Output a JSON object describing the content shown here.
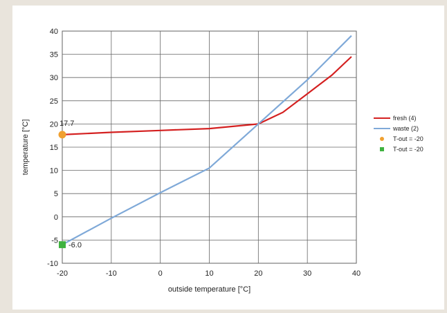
{
  "chart_data": {
    "type": "line",
    "title": "",
    "xlabel": "outside temperature [°C]",
    "ylabel": "temperature [°C]",
    "xlim": [
      -20,
      40
    ],
    "ylim": [
      -10,
      40
    ],
    "xticks": [
      -20,
      -10,
      0,
      10,
      20,
      30,
      40
    ],
    "yticks": [
      -10,
      -5,
      0,
      5,
      10,
      15,
      20,
      25,
      30,
      35,
      40
    ],
    "grid": true,
    "legend_position": "right",
    "series": [
      {
        "name": "fresh (4)",
        "color": "#d42020",
        "marker": "none",
        "x": [
          -20,
          -10,
          0,
          10,
          20,
          25,
          30,
          35,
          39
        ],
        "y": [
          17.7,
          18.2,
          18.6,
          19.0,
          20.0,
          22.5,
          26.5,
          30.5,
          34.5
        ]
      },
      {
        "name": "waste (2)",
        "color": "#7fa9d8",
        "marker": "none",
        "x": [
          -20,
          -10,
          0,
          10,
          20,
          30,
          39
        ],
        "y": [
          -6.0,
          -0.3,
          5.2,
          10.5,
          20.0,
          29.5,
          39.0
        ]
      },
      {
        "name": "T-out = -20",
        "color": "#f0a030",
        "marker": "circle",
        "x": [
          -20
        ],
        "y": [
          17.7
        ],
        "label": "17.7"
      },
      {
        "name": "T-out = -20",
        "color": "#3fb23f",
        "marker": "square",
        "x": [
          -20
        ],
        "y": [
          -6.0
        ],
        "label": "-6.0"
      }
    ]
  }
}
